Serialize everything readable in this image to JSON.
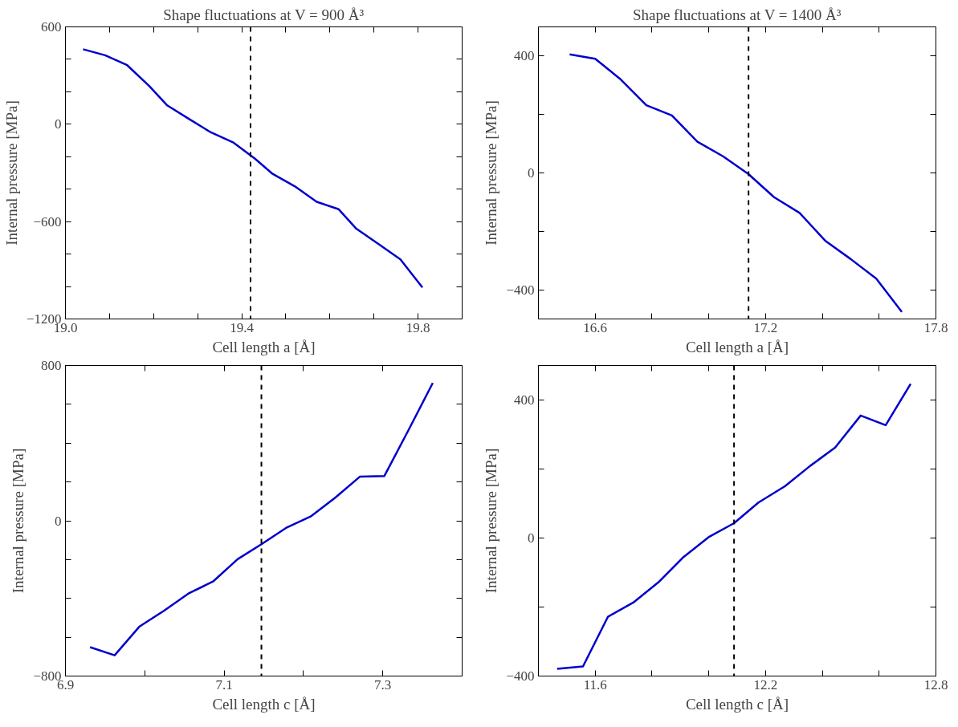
{
  "chart_data": [
    {
      "type": "line",
      "title": "Shape fluctuations at V = 900 Å³",
      "xlabel": "Cell length a [Å]",
      "ylabel": "Internal pressure [MPa]",
      "x": [
        19.04,
        19.09,
        19.14,
        19.19,
        19.23,
        19.28,
        19.33,
        19.38,
        19.43,
        19.47,
        19.52,
        19.57,
        19.62,
        19.66,
        19.71,
        19.76,
        19.81
      ],
      "series": [
        {
          "color": "#0000cd",
          "values": [
            462,
            425,
            364,
            236,
            118,
            33,
            -50,
            -111,
            -212,
            -306,
            -382,
            -478,
            -524,
            -644,
            -738,
            -833,
            -1006
          ]
        }
      ],
      "xlim": [
        19.0,
        19.9
      ],
      "xticks": [
        {
          "value": 19.0,
          "label": "19.0"
        },
        {
          "value": 19.1,
          "label": null
        },
        {
          "value": 19.2,
          "label": null
        },
        {
          "value": 19.3,
          "label": null
        },
        19.4,
        {
          "value": 19.5,
          "label": null
        },
        {
          "value": 19.6,
          "label": null
        },
        {
          "value": 19.7,
          "label": null
        },
        19.8
      ],
      "ylim": [
        -1200,
        600
      ],
      "yticks": [
        600,
        {
          "value": 400,
          "label": null
        },
        {
          "value": 200,
          "label": null
        },
        0,
        {
          "value": -200,
          "label": null
        },
        {
          "value": -400,
          "label": null
        },
        {
          "value": -600,
          "label": "−600"
        },
        {
          "value": -800,
          "label": null
        },
        {
          "value": -1000,
          "label": null
        },
        {
          "value": -1200,
          "label": "−1200"
        }
      ],
      "ref_lines": [
        {
          "axis": "x",
          "value": 19.42,
          "color": "#000000",
          "line_style": "dashed"
        }
      ],
      "line_style": "solid",
      "grid": false
    },
    {
      "type": "line",
      "title": "Shape fluctuations at V = 1400 Å³",
      "xlabel": "Cell length a [Å]",
      "ylabel": "Internal pressure [MPa]",
      "x": [
        16.51,
        16.6,
        16.69,
        16.78,
        16.87,
        16.96,
        17.05,
        17.14,
        17.23,
        17.32,
        17.41,
        17.5,
        17.59,
        17.68
      ],
      "series": [
        {
          "color": "#0000cd",
          "values": [
            406,
            391,
            320,
            232,
            197,
            107,
            57,
            -4,
            -83,
            -137,
            -232,
            -295,
            -362,
            -476
          ]
        }
      ],
      "xlim": [
        16.4,
        17.8
      ],
      "xticks": [
        16.6,
        {
          "value": 16.8,
          "label": null
        },
        {
          "value": 17.0,
          "label": null
        },
        17.2,
        {
          "value": 17.4,
          "label": null
        },
        {
          "value": 17.6,
          "label": null
        },
        17.8
      ],
      "ylim": [
        -500,
        500
      ],
      "yticks": [
        400,
        {
          "value": 200,
          "label": null
        },
        0,
        {
          "value": -200,
          "label": null
        },
        {
          "value": -400,
          "label": "−400"
        }
      ],
      "ref_lines": [
        {
          "axis": "x",
          "value": 17.14,
          "color": "#000000",
          "line_style": "dashed"
        }
      ],
      "line_style": "solid",
      "grid": false
    },
    {
      "type": "line",
      "xlabel": "Cell length c [Å]",
      "ylabel": "Internal pressure [MPa]",
      "x": [
        6.931,
        6.962,
        6.993,
        7.024,
        7.055,
        7.086,
        7.117,
        7.147,
        7.178,
        7.209,
        7.24,
        7.271,
        7.302,
        7.332,
        7.363
      ],
      "series": [
        {
          "color": "#0000cd",
          "values": [
            -651,
            -693,
            -546,
            -464,
            -375,
            -313,
            -198,
            -121,
            -37,
            22,
            119,
            227,
            231,
            464,
            710
          ]
        }
      ],
      "xlim": [
        6.9,
        7.4
      ],
      "xticks": [
        6.9,
        {
          "value": 7.0,
          "label": null
        },
        7.1,
        {
          "value": 7.2,
          "label": null
        },
        7.3
      ],
      "ylim": [
        -800,
        800
      ],
      "yticks": [
        800,
        {
          "value": 600,
          "label": null
        },
        {
          "value": 400,
          "label": null
        },
        {
          "value": 200,
          "label": null
        },
        0,
        {
          "value": -200,
          "label": null
        },
        {
          "value": -400,
          "label": null
        },
        {
          "value": -600,
          "label": null
        },
        {
          "value": -800,
          "label": "−800"
        }
      ],
      "ref_lines": [
        {
          "axis": "x",
          "value": 7.147,
          "color": "#000000",
          "line_style": "dashed"
        }
      ],
      "line_style": "solid",
      "grid": false
    },
    {
      "type": "line",
      "xlabel": "Cell length c [Å]",
      "ylabel": "Internal pressure [MPa]",
      "x": [
        11.466,
        11.557,
        11.645,
        11.734,
        11.823,
        11.911,
        12.002,
        12.089,
        12.175,
        12.268,
        12.357,
        12.445,
        12.535,
        12.623,
        12.711
      ],
      "series": [
        {
          "color": "#0000cd",
          "values": [
            -379,
            -372,
            -228,
            -187,
            -128,
            -55,
            4,
            43,
            103,
            150,
            209,
            262,
            355,
            327,
            447
          ]
        }
      ],
      "xlim": [
        11.4,
        12.8
      ],
      "xticks": [
        11.6,
        {
          "value": 11.8,
          "label": null
        },
        {
          "value": 12.0,
          "label": null
        },
        12.2,
        {
          "value": 12.4,
          "label": null
        },
        {
          "value": 12.6,
          "label": null
        },
        12.8
      ],
      "ylim": [
        -400,
        500
      ],
      "yticks": [
        400,
        {
          "value": 200,
          "label": null
        },
        0,
        {
          "value": -200,
          "label": null
        },
        {
          "value": -400,
          "label": "−400"
        }
      ],
      "ref_lines": [
        {
          "axis": "x",
          "value": 12.089,
          "color": "#000000",
          "line_style": "dashed"
        }
      ],
      "line_style": "solid",
      "grid": false
    }
  ]
}
